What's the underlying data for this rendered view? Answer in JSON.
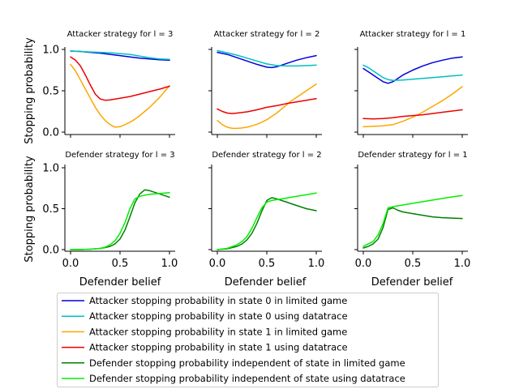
{
  "chart_data": {
    "type": "line",
    "shared_ylabel_top": "Stopping probability",
    "shared_ylabel_bottom": "Stopping probability",
    "shared_xlabel": "Defender belief",
    "x_ticks": [
      "0.0",
      "0.5",
      "1.0"
    ],
    "y_ticks": [
      "0.0",
      "0.5",
      "1.0"
    ],
    "xlim": [
      0,
      1
    ],
    "ylim": [
      0,
      1
    ],
    "legend_position": "bottom-center",
    "legend": [
      {
        "key": "att0_limited",
        "label": "Attacker stopping probability in state 0 in limited game",
        "color": "#0000dd"
      },
      {
        "key": "att0_trace",
        "label": "Attacker stopping probability in state 0 using datatrace",
        "color": "#00c0c0"
      },
      {
        "key": "att1_limited",
        "label": "Attacker stopping probability in state 1 in limited game",
        "color": "#ffa500"
      },
      {
        "key": "att1_trace",
        "label": "Attacker stopping probability in state 1 using datatrace",
        "color": "#ee0000"
      },
      {
        "key": "def_limited",
        "label": "Defender stopping probability independent of state in limited game",
        "color": "#008000"
      },
      {
        "key": "def_trace",
        "label": "Defender stopping probability independent of state using datatrace",
        "color": "#00ee00"
      }
    ],
    "panels": [
      {
        "title": "Attacker strategy for l = 3",
        "series": [
          {
            "key": "att0_limited",
            "x": [
              0,
              0.1,
              0.2,
              0.3,
              0.4,
              0.5,
              0.6,
              0.7,
              0.8,
              0.9,
              1.0
            ],
            "y": [
              0.98,
              0.975,
              0.965,
              0.955,
              0.94,
              0.925,
              0.91,
              0.895,
              0.885,
              0.875,
              0.87
            ]
          },
          {
            "key": "att0_trace",
            "x": [
              0,
              0.1,
              0.2,
              0.3,
              0.4,
              0.5,
              0.6,
              0.7,
              0.8,
              0.9,
              1.0
            ],
            "y": [
              0.98,
              0.975,
              0.97,
              0.965,
              0.96,
              0.95,
              0.94,
              0.92,
              0.9,
              0.885,
              0.88
            ]
          },
          {
            "key": "att1_limited",
            "x": [
              0,
              0.05,
              0.1,
              0.15,
              0.2,
              0.25,
              0.3,
              0.35,
              0.4,
              0.45,
              0.5,
              0.55,
              0.6,
              0.65,
              0.7,
              0.75,
              0.8,
              0.85,
              0.9,
              0.95,
              1.0
            ],
            "y": [
              0.82,
              0.74,
              0.63,
              0.52,
              0.41,
              0.3,
              0.21,
              0.14,
              0.09,
              0.06,
              0.065,
              0.09,
              0.12,
              0.155,
              0.2,
              0.25,
              0.3,
              0.36,
              0.42,
              0.49,
              0.56
            ]
          },
          {
            "key": "att1_trace",
            "x": [
              0,
              0.05,
              0.1,
              0.15,
              0.2,
              0.25,
              0.3,
              0.35,
              0.4,
              0.5,
              0.6,
              0.7,
              0.8,
              0.9,
              1.0
            ],
            "y": [
              0.91,
              0.87,
              0.8,
              0.69,
              0.57,
              0.46,
              0.4,
              0.385,
              0.39,
              0.41,
              0.43,
              0.46,
              0.49,
              0.52,
              0.555
            ]
          }
        ]
      },
      {
        "title": "Attacker strategy for l = 2",
        "series": [
          {
            "key": "att0_limited",
            "x": [
              0,
              0.1,
              0.2,
              0.3,
              0.4,
              0.5,
              0.55,
              0.6,
              0.7,
              0.8,
              0.9,
              1.0
            ],
            "y": [
              0.965,
              0.94,
              0.9,
              0.86,
              0.82,
              0.785,
              0.78,
              0.79,
              0.83,
              0.87,
              0.9,
              0.925
            ]
          },
          {
            "key": "att0_trace",
            "x": [
              0,
              0.1,
              0.2,
              0.3,
              0.4,
              0.5,
              0.6,
              0.7,
              0.8,
              0.9,
              1.0
            ],
            "y": [
              0.985,
              0.96,
              0.93,
              0.895,
              0.86,
              0.825,
              0.805,
              0.8,
              0.8,
              0.805,
              0.81
            ]
          },
          {
            "key": "att1_limited",
            "x": [
              0,
              0.05,
              0.1,
              0.15,
              0.2,
              0.25,
              0.3,
              0.35,
              0.4,
              0.45,
              0.5,
              0.55,
              0.6,
              0.65,
              0.7,
              0.75,
              0.8,
              0.85,
              0.9,
              0.95,
              1.0
            ],
            "y": [
              0.14,
              0.09,
              0.06,
              0.045,
              0.045,
              0.05,
              0.06,
              0.075,
              0.095,
              0.12,
              0.15,
              0.19,
              0.23,
              0.28,
              0.33,
              0.38,
              0.42,
              0.46,
              0.5,
              0.54,
              0.58
            ]
          },
          {
            "key": "att1_trace",
            "x": [
              0,
              0.05,
              0.1,
              0.15,
              0.2,
              0.3,
              0.4,
              0.5,
              0.6,
              0.7,
              0.8,
              0.9,
              1.0
            ],
            "y": [
              0.28,
              0.25,
              0.23,
              0.225,
              0.23,
              0.245,
              0.27,
              0.3,
              0.32,
              0.345,
              0.365,
              0.385,
              0.405
            ]
          }
        ]
      },
      {
        "title": "Attacker strategy for l = 1",
        "series": [
          {
            "key": "att0_limited",
            "x": [
              0,
              0.05,
              0.1,
              0.15,
              0.2,
              0.25,
              0.3,
              0.35,
              0.4,
              0.5,
              0.6,
              0.7,
              0.8,
              0.9,
              1.0
            ],
            "y": [
              0.77,
              0.73,
              0.69,
              0.65,
              0.61,
              0.59,
              0.61,
              0.65,
              0.69,
              0.75,
              0.8,
              0.84,
              0.87,
              0.895,
              0.91
            ]
          },
          {
            "key": "att0_trace",
            "x": [
              0,
              0.05,
              0.1,
              0.15,
              0.2,
              0.25,
              0.3,
              0.4,
              0.5,
              0.6,
              0.7,
              0.8,
              0.9,
              1.0
            ],
            "y": [
              0.81,
              0.78,
              0.74,
              0.7,
              0.66,
              0.635,
              0.625,
              0.63,
              0.64,
              0.65,
              0.66,
              0.67,
              0.68,
              0.69
            ]
          },
          {
            "key": "att1_limited",
            "x": [
              0,
              0.1,
              0.2,
              0.3,
              0.4,
              0.5,
              0.6,
              0.7,
              0.8,
              0.9,
              1.0
            ],
            "y": [
              0.065,
              0.07,
              0.075,
              0.09,
              0.13,
              0.18,
              0.24,
              0.31,
              0.38,
              0.46,
              0.55
            ]
          },
          {
            "key": "att1_trace",
            "x": [
              0,
              0.1,
              0.2,
              0.3,
              0.4,
              0.5,
              0.6,
              0.7,
              0.8,
              0.9,
              1.0
            ],
            "y": [
              0.165,
              0.16,
              0.165,
              0.175,
              0.19,
              0.2,
              0.21,
              0.225,
              0.24,
              0.255,
              0.27
            ]
          }
        ]
      },
      {
        "title": "Defender strategy for l = 3",
        "series": [
          {
            "key": "def_limited",
            "x": [
              0,
              0.1,
              0.2,
              0.3,
              0.35,
              0.4,
              0.45,
              0.5,
              0.55,
              0.6,
              0.65,
              0.7,
              0.75,
              0.8,
              0.85,
              0.9,
              0.95,
              1.0
            ],
            "y": [
              0.0,
              0.0,
              0.005,
              0.015,
              0.025,
              0.04,
              0.07,
              0.13,
              0.24,
              0.4,
              0.57,
              0.68,
              0.73,
              0.72,
              0.7,
              0.68,
              0.66,
              0.64
            ]
          },
          {
            "key": "def_trace",
            "x": [
              0,
              0.1,
              0.2,
              0.3,
              0.35,
              0.4,
              0.45,
              0.5,
              0.55,
              0.6,
              0.65,
              0.7,
              0.75,
              0.8,
              0.85,
              0.9,
              0.95,
              1.0
            ],
            "y": [
              0.0,
              0.0,
              0.005,
              0.015,
              0.03,
              0.06,
              0.11,
              0.2,
              0.33,
              0.5,
              0.62,
              0.65,
              0.665,
              0.675,
              0.68,
              0.685,
              0.69,
              0.695
            ]
          }
        ]
      },
      {
        "title": "Defender strategy for l = 2",
        "series": [
          {
            "key": "def_limited",
            "x": [
              0,
              0.1,
              0.2,
              0.25,
              0.3,
              0.35,
              0.4,
              0.45,
              0.5,
              0.55,
              0.6,
              0.7,
              0.8,
              0.9,
              1.0
            ],
            "y": [
              0.0,
              0.01,
              0.04,
              0.07,
              0.12,
              0.2,
              0.32,
              0.47,
              0.6,
              0.635,
              0.62,
              0.58,
              0.54,
              0.5,
              0.475
            ]
          },
          {
            "key": "def_trace",
            "x": [
              0,
              0.1,
              0.2,
              0.25,
              0.3,
              0.35,
              0.4,
              0.45,
              0.5,
              0.55,
              0.6,
              0.7,
              0.8,
              0.9,
              1.0
            ],
            "y": [
              0.0,
              0.015,
              0.06,
              0.1,
              0.16,
              0.26,
              0.39,
              0.51,
              0.58,
              0.6,
              0.61,
              0.63,
              0.65,
              0.67,
              0.69
            ]
          }
        ]
      },
      {
        "title": "Defender strategy for l = 1",
        "series": [
          {
            "key": "def_limited",
            "x": [
              0,
              0.05,
              0.1,
              0.15,
              0.2,
              0.25,
              0.3,
              0.35,
              0.4,
              0.5,
              0.6,
              0.7,
              0.8,
              0.9,
              1.0
            ],
            "y": [
              0.02,
              0.04,
              0.07,
              0.13,
              0.27,
              0.49,
              0.51,
              0.48,
              0.46,
              0.44,
              0.42,
              0.4,
              0.39,
              0.385,
              0.38
            ]
          },
          {
            "key": "def_trace",
            "x": [
              0,
              0.05,
              0.1,
              0.15,
              0.2,
              0.25,
              0.3,
              0.35,
              0.4,
              0.5,
              0.6,
              0.7,
              0.8,
              0.9,
              1.0
            ],
            "y": [
              0.04,
              0.07,
              0.1,
              0.18,
              0.32,
              0.51,
              0.525,
              0.535,
              0.545,
              0.565,
              0.585,
              0.605,
              0.625,
              0.645,
              0.66
            ]
          }
        ]
      }
    ]
  }
}
